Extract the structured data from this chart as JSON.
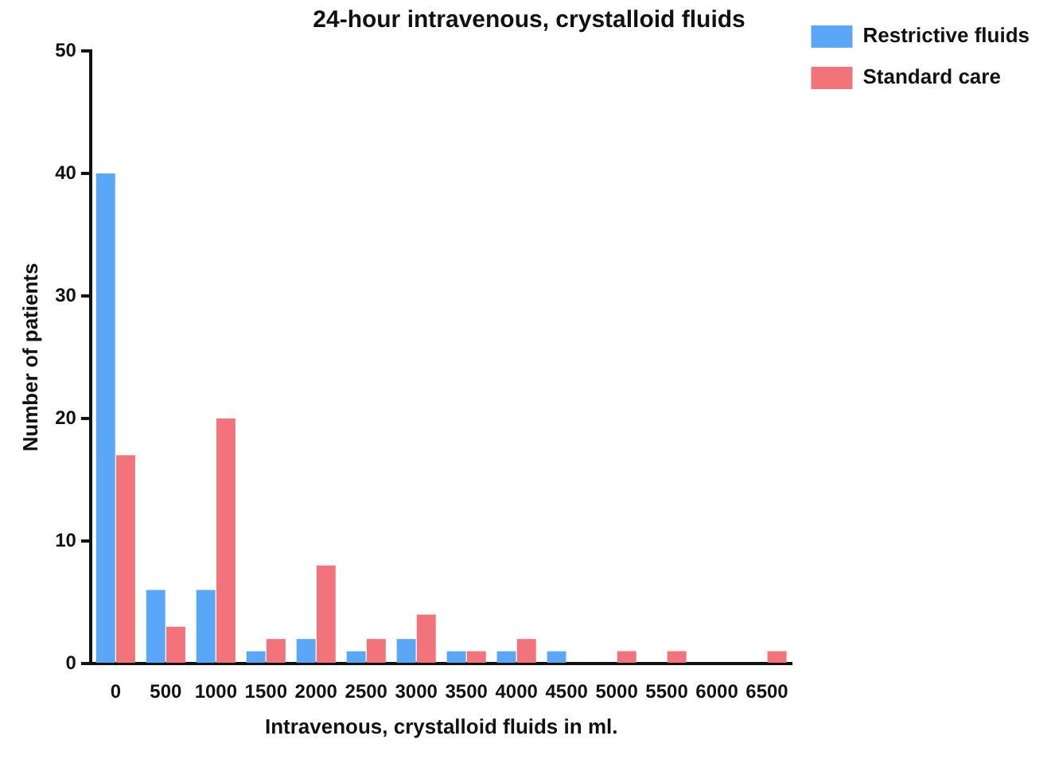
{
  "chart_data": {
    "type": "bar",
    "title": "24-hour intravenous, crystalloid fluids",
    "xlabel": "Intravenous, crystalloid fluids in ml.",
    "ylabel": "Number of patients",
    "categories": [
      "0",
      "500",
      "1000",
      "1500",
      "2000",
      "2500",
      "3000",
      "3500",
      "4000",
      "4500",
      "5000",
      "5500",
      "6000",
      "6500"
    ],
    "series": [
      {
        "name": "Restrictive fluids",
        "color": "#5aa7f7",
        "values": [
          40,
          6,
          6,
          1,
          2,
          1,
          2,
          1,
          1,
          1,
          0,
          0,
          0,
          0
        ]
      },
      {
        "name": "Standard care",
        "color": "#f2737a",
        "values": [
          17,
          3,
          20,
          2,
          8,
          2,
          4,
          1,
          2,
          0,
          1,
          1,
          0,
          1
        ]
      }
    ],
    "ylim": [
      0,
      50
    ],
    "yticks": [
      0,
      10,
      20,
      30,
      40,
      50
    ],
    "grid": false,
    "legend": "top right"
  }
}
